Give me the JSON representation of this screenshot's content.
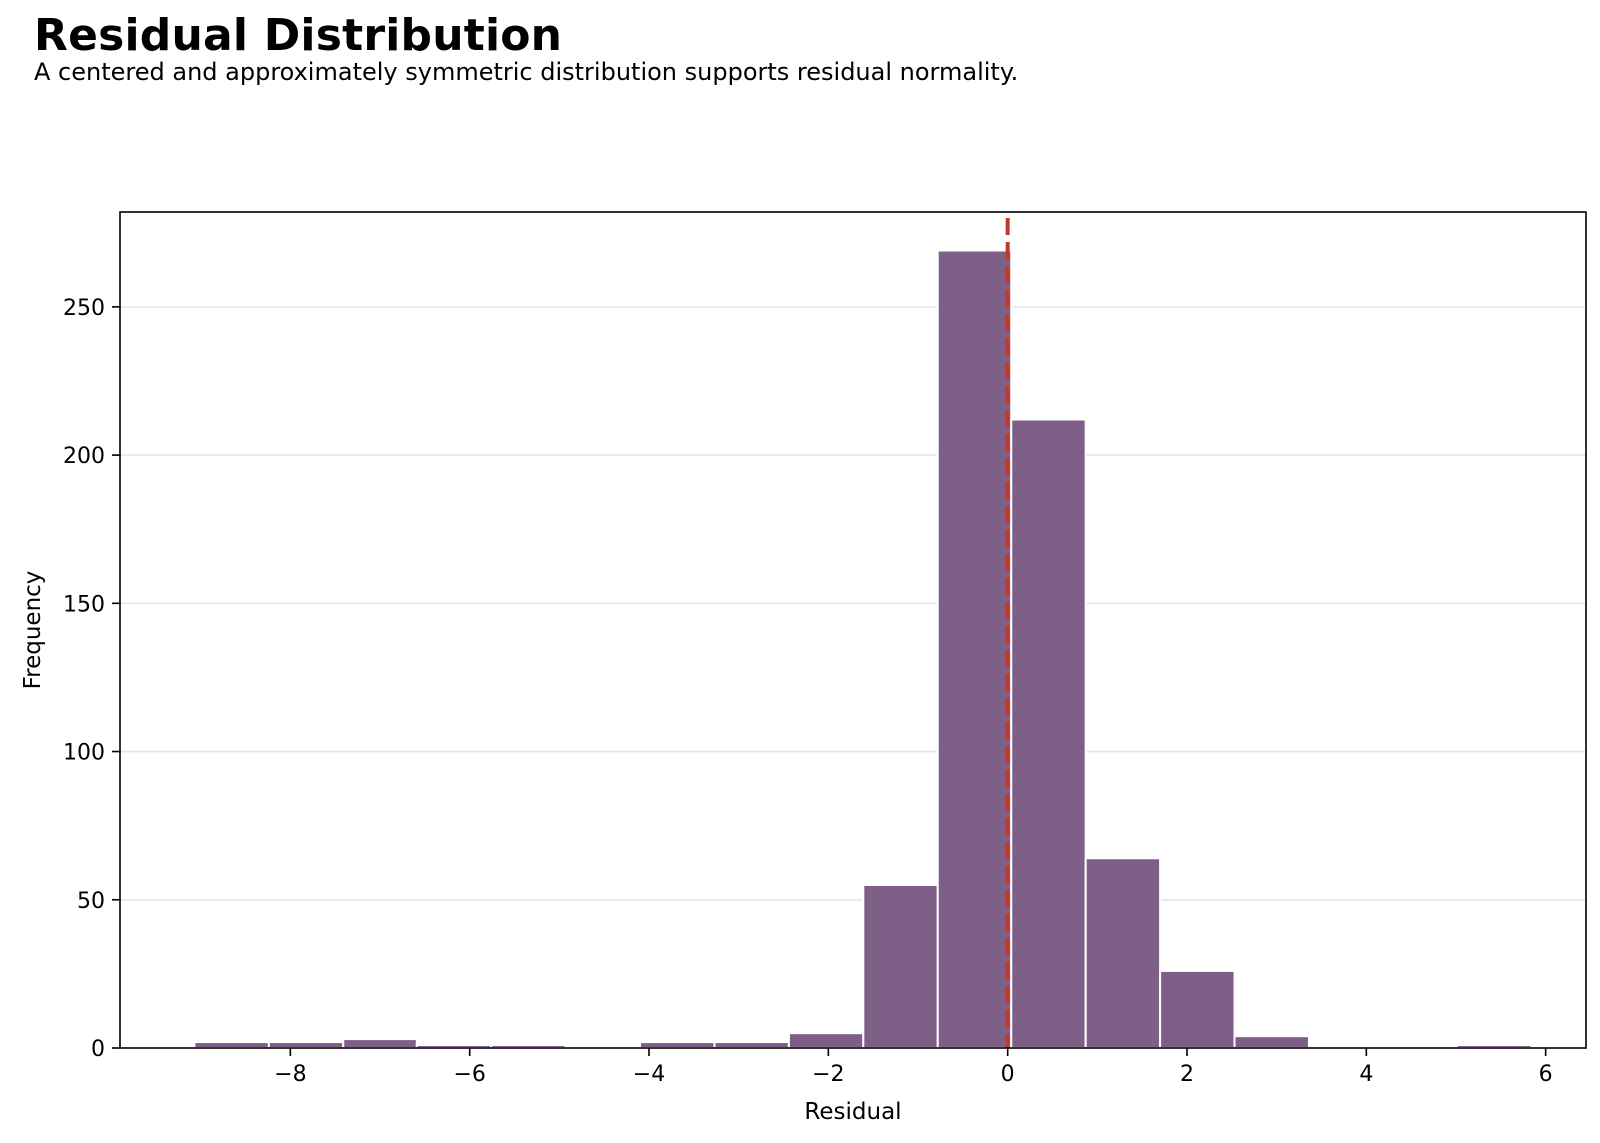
{
  "header": {
    "title": "Residual Distribution",
    "subtitle": "A centered and approximately symmetric distribution supports residual normality."
  },
  "chart_data": {
    "type": "bar",
    "title": "Residual Distribution",
    "subtitle": "A centered and approximately symmetric distribution supports residual normality.",
    "xlabel": "Residual",
    "ylabel": "Frequency",
    "xlim": [
      -9.9,
      6.45
    ],
    "ylim": [
      0,
      282
    ],
    "xticks": [
      -8,
      -6,
      -4,
      -2,
      0,
      2,
      4,
      6
    ],
    "xtick_labels": [
      "−8",
      "−6",
      "−4",
      "−2",
      "0",
      "2",
      "4",
      "6"
    ],
    "yticks": [
      0,
      50,
      100,
      150,
      200,
      250
    ],
    "ytick_labels": [
      "0",
      "50",
      "100",
      "150",
      "200",
      "250"
    ],
    "grid": "horizontal",
    "bin_edges": [
      -9.07,
      -8.24,
      -7.41,
      -6.59,
      -5.76,
      -4.93,
      -4.1,
      -3.27,
      -2.44,
      -1.61,
      -0.78,
      0.04,
      0.87,
      1.7,
      2.53,
      3.36,
      4.18,
      5.01,
      5.84
    ],
    "counts": [
      2,
      2,
      3,
      1,
      1,
      0,
      2,
      2,
      5,
      55,
      269,
      212,
      64,
      26,
      4,
      0,
      0,
      1
    ],
    "reference_line_x": 0,
    "colors": {
      "bar": "#7e5f87",
      "bar_edge": "#ffffff",
      "reference_line": "#c0392b",
      "grid": "#e6e6e6"
    }
  }
}
